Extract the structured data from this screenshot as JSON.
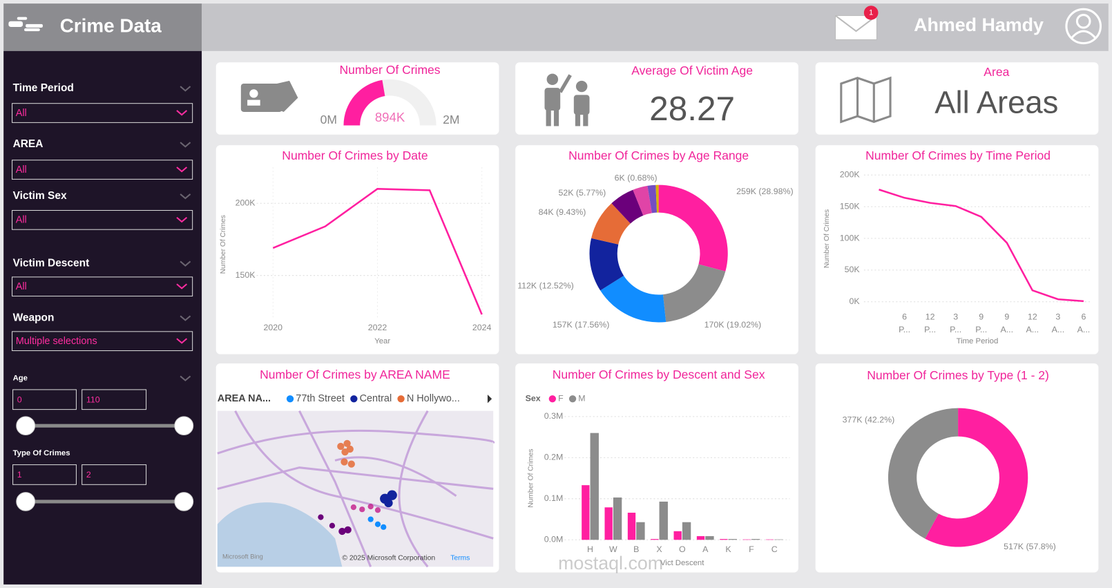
{
  "header": {
    "title": "Crime Data",
    "user": "Ahmed Hamdy",
    "notifications": 1
  },
  "filters": [
    {
      "label": "Time Period",
      "value": "All"
    },
    {
      "label": "AREA",
      "value": "All"
    },
    {
      "label": "Victim Sex",
      "value": "All"
    },
    {
      "label": "Victim Descent",
      "value": "All"
    },
    {
      "label": "Weapon",
      "value": "Multiple selections"
    }
  ],
  "ranges": [
    {
      "label": "Age",
      "min": 0,
      "max": 110
    },
    {
      "label": "Type Of Crimes",
      "min": 1,
      "max": 2
    }
  ],
  "cards": [
    {
      "title": "Average Of Victim Age",
      "value": "28.27"
    },
    {
      "title": "Area",
      "value": "All Areas"
    }
  ],
  "map": {
    "title": "Number Of Crimes by AREA NAME",
    "legend_title": "AREA NA...",
    "items": [
      {
        "name": "77th Street",
        "color": "#118dff"
      },
      {
        "name": "Central",
        "color": "#12239e"
      },
      {
        "name": "N Hollywo...",
        "color": "#e66c37"
      }
    ],
    "credits": [
      "Microsoft Bing",
      "© 2025 Microsoft Corporation",
      "Terms"
    ]
  },
  "watermark": "mostaql.com",
  "chart_data": [
    {
      "type": "gauge",
      "title": "Number Of Crimes",
      "values": [
        894000
      ],
      "value_labels": [
        "894K"
      ],
      "ylim": [
        0,
        2000000
      ],
      "yticks": [
        {
          "value": 0,
          "label": "0M"
        },
        {
          "value": 2000000,
          "label": "2M"
        }
      ],
      "color": "#ff1fa0",
      "track_color": "#f0f0f0"
    },
    {
      "type": "line",
      "title": "Number Of Crimes by Date",
      "xlabel": "Year",
      "ylabel": "Number Of Crimes",
      "x": [
        2020,
        2021,
        2022,
        2023,
        2024
      ],
      "values": [
        169000,
        184000,
        210000,
        209000,
        123000
      ],
      "xlim": [
        2020,
        2024
      ],
      "xticks": [
        2020,
        2022,
        2024
      ],
      "ylim": [
        120000,
        225000
      ],
      "yticks": [
        {
          "value": 150000,
          "label": "150K"
        },
        {
          "value": 200000,
          "label": "200K"
        }
      ],
      "color": "#ff1fa0",
      "grid": true
    },
    {
      "type": "donut",
      "title": "Number Of Crimes by Age Range",
      "values": [
        259000,
        170000,
        157000,
        112000,
        84000,
        52000,
        31000,
        17000,
        6000
      ],
      "value_labels": [
        "259K (28.98%)",
        "170K (19.02%)",
        "157K (17.56%)",
        "112K (12.52%)",
        "84K (9.43%)",
        "52K (5.77%)",
        null,
        null,
        "6K (0.68%)"
      ],
      "colors": [
        "#ff1fa0",
        "#8c8c8c",
        "#118dff",
        "#12239e",
        "#e66c37",
        "#6b007b",
        "#e044a7",
        "#744ec2",
        "#d9b300"
      ]
    },
    {
      "type": "line",
      "title": "Number Of Crimes by Time Period",
      "xlabel": "Time Period",
      "ylabel": "Number Of Crimes",
      "categories": [
        null,
        [
          "6",
          "P..."
        ],
        [
          "12",
          "P..."
        ],
        [
          "3",
          "P..."
        ],
        [
          "9",
          "P..."
        ],
        [
          "9",
          "A..."
        ],
        [
          "12",
          "A..."
        ],
        [
          "3",
          "A..."
        ],
        [
          "6",
          "A..."
        ]
      ],
      "values": [
        177000,
        164000,
        156000,
        151000,
        134000,
        93000,
        18000,
        4000,
        1000
      ],
      "ylim": [
        0,
        200000
      ],
      "yticks": [
        {
          "value": 0,
          "label": "0K"
        },
        {
          "value": 50000,
          "label": "50K"
        },
        {
          "value": 100000,
          "label": "100K"
        },
        {
          "value": 150000,
          "label": "150K"
        },
        {
          "value": 200000,
          "label": "200K"
        }
      ],
      "color": "#ff1fa0",
      "grid": true
    },
    {
      "type": "bar",
      "title": "Number Of Crimes by Descent and Sex",
      "xlabel": "Vict Descent",
      "ylabel": "Number Of Crimes",
      "legend_title": "Sex",
      "categories": [
        "H",
        "W",
        "B",
        "X",
        "O",
        "A",
        "K",
        "F",
        "C"
      ],
      "series": [
        {
          "name": "F",
          "color": "#ff1fa0",
          "values": [
            133000,
            79000,
            66000,
            2000,
            21000,
            9000,
            2000,
            1000,
            1000
          ]
        },
        {
          "name": "M",
          "color": "#8c8c8c",
          "values": [
            260000,
            103000,
            43000,
            93000,
            43000,
            9000,
            2000,
            2000,
            1000
          ]
        }
      ],
      "ylim": [
        0,
        300000
      ],
      "yticks": [
        {
          "value": 0,
          "label": "0.0M"
        },
        {
          "value": 100000,
          "label": "0.1M"
        },
        {
          "value": 200000,
          "label": "0.2M"
        },
        {
          "value": 300000,
          "label": "0.3M"
        }
      ],
      "grid": true
    },
    {
      "type": "donut",
      "title": "Number Of Crimes by Type (1 - 2)",
      "values": [
        517000,
        377000
      ],
      "value_labels": [
        "517K (57.8%)",
        "377K (42.2%)"
      ],
      "colors": [
        "#ff1fa0",
        "#8c8c8c"
      ]
    }
  ]
}
